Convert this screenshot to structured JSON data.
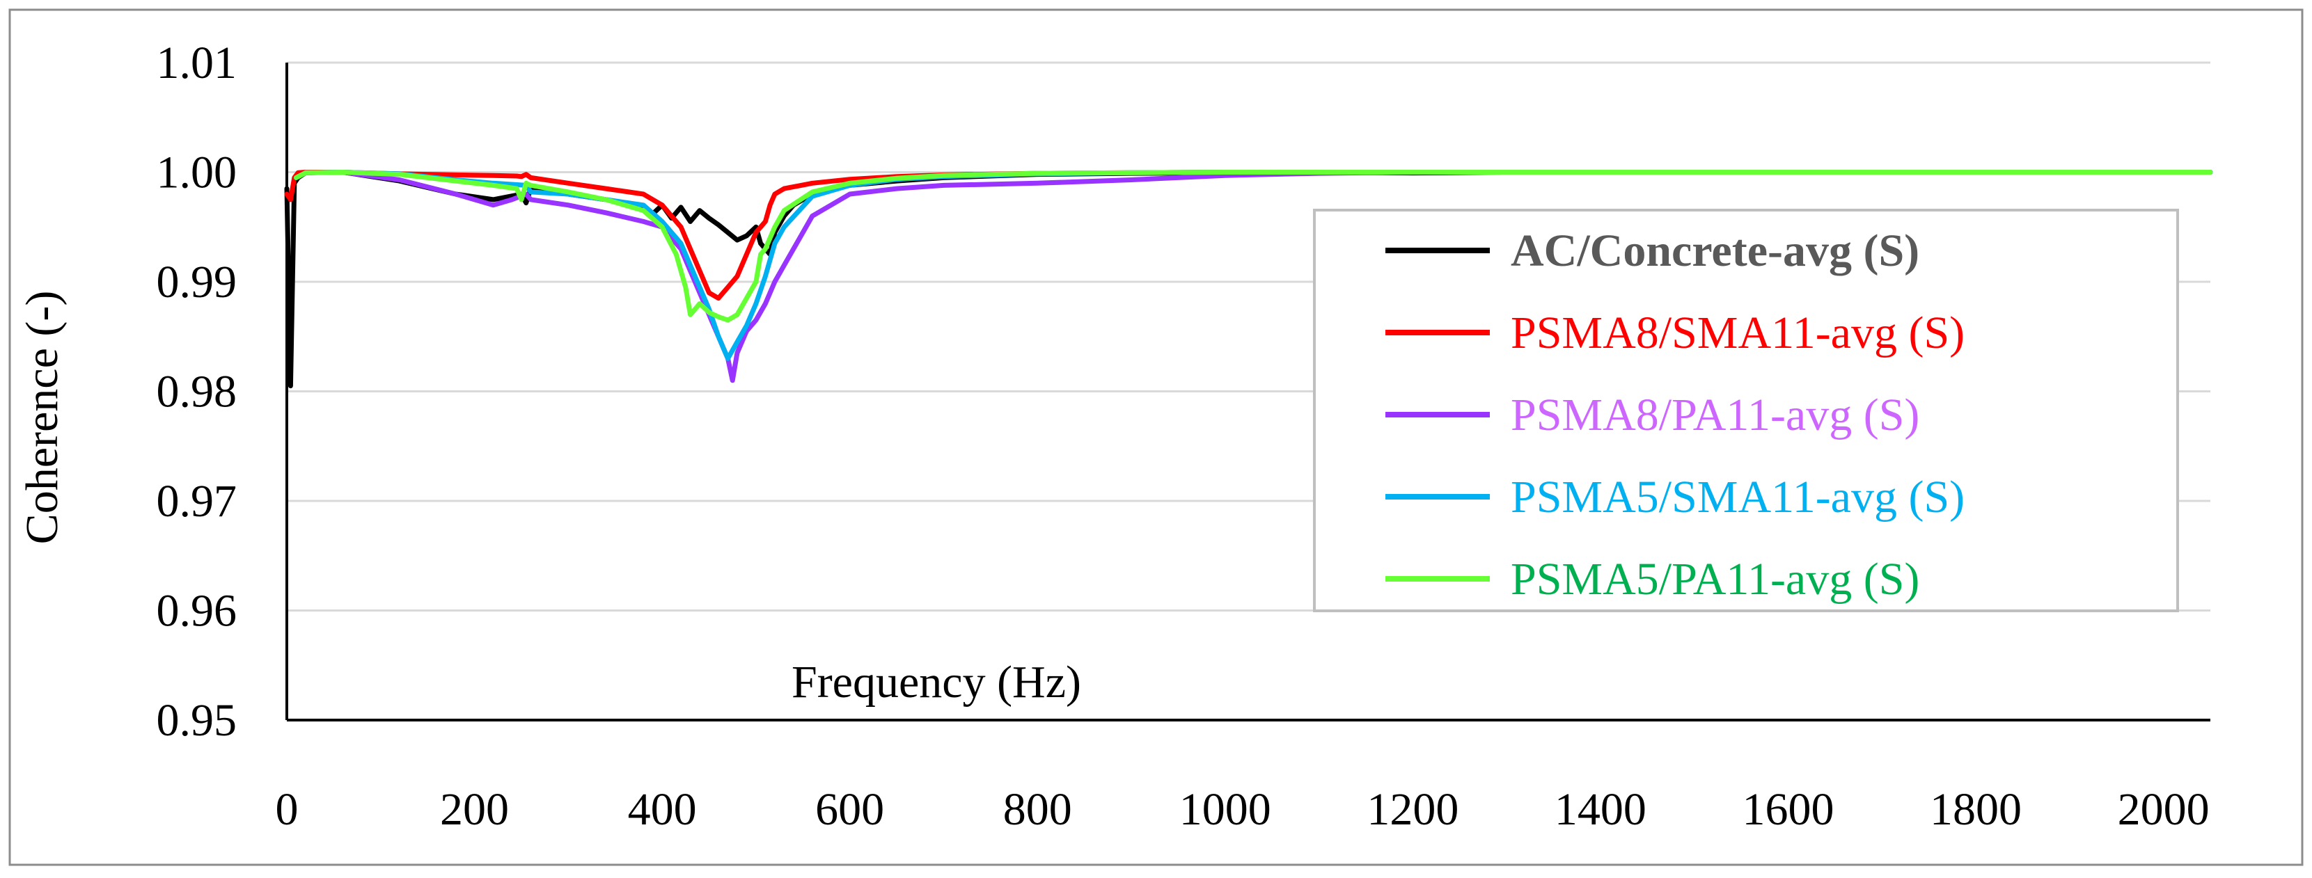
{
  "chart_data": {
    "type": "line",
    "title": "",
    "xlabel": "Frequency (Hz)",
    "ylabel": "Coherence (-)",
    "xlim": [
      0,
      2050
    ],
    "ylim": [
      0.95,
      1.01
    ],
    "x_ticks": [
      0,
      200,
      400,
      600,
      800,
      1000,
      1200,
      1400,
      1600,
      1800,
      2000
    ],
    "y_ticks": [
      0.95,
      0.96,
      0.97,
      0.98,
      0.99,
      1.0,
      1.01
    ],
    "y_tick_labels": [
      "0.95",
      "0.96",
      "0.97",
      "0.98",
      "0.99",
      "1.00",
      "1.01"
    ],
    "grid": "horizontal",
    "legend_position": "right",
    "series": [
      {
        "name": "AC/Concrete-avg (S)",
        "line_color": "#000000",
        "text_color": "#595959",
        "bold": true,
        "x": [
          0,
          4,
          8,
          12,
          20,
          60,
          120,
          180,
          220,
          250,
          255,
          260,
          300,
          340,
          360,
          390,
          400,
          410,
          420,
          430,
          440,
          450,
          460,
          470,
          480,
          490,
          500,
          505,
          510,
          515,
          520,
          530,
          540,
          560,
          600,
          650,
          700,
          800,
          900,
          1000,
          1100,
          1200,
          1300,
          1500,
          1800,
          2050
        ],
        "values": [
          0.9985,
          0.9805,
          0.999,
          0.9995,
          0.99995,
          1.0,
          0.9992,
          0.998,
          0.9975,
          0.998,
          0.9972,
          0.9985,
          0.998,
          0.9975,
          0.9972,
          0.9962,
          0.997,
          0.9958,
          0.9968,
          0.9955,
          0.9965,
          0.9958,
          0.9952,
          0.9945,
          0.9938,
          0.9942,
          0.995,
          0.9935,
          0.993,
          0.9925,
          0.9945,
          0.996,
          0.997,
          0.998,
          0.9988,
          0.9992,
          0.9995,
          0.9998,
          0.9999,
          0.99995,
          1.0,
          0.99993,
          1.0,
          1.0,
          1.0,
          1.0
        ]
      },
      {
        "name": "PSMA8/SMA11-avg (S)",
        "line_color": "#ff0000",
        "text_color": "#ff0000",
        "bold": false,
        "x": [
          0,
          4,
          8,
          12,
          20,
          60,
          120,
          180,
          220,
          245,
          250,
          255,
          260,
          300,
          340,
          380,
          400,
          420,
          440,
          450,
          460,
          470,
          480,
          490,
          500,
          505,
          510,
          515,
          520,
          530,
          560,
          600,
          650,
          700,
          800,
          900,
          1000,
          1200,
          1500,
          2050
        ],
        "values": [
          0.998,
          0.9975,
          0.9995,
          0.99995,
          1.0,
          1.0,
          0.99985,
          0.99975,
          0.9997,
          0.99965,
          0.9996,
          0.9998,
          0.9995,
          0.999,
          0.9985,
          0.998,
          0.997,
          0.995,
          0.991,
          0.989,
          0.9885,
          0.9895,
          0.9905,
          0.9925,
          0.9945,
          0.995,
          0.9955,
          0.997,
          0.998,
          0.9985,
          0.999,
          0.99935,
          0.9996,
          0.99975,
          0.9999,
          0.99995,
          1.0,
          1.0,
          1.0,
          1.0
        ]
      },
      {
        "name": "PSMA8/PA11-avg (S)",
        "line_color": "#9933ff",
        "text_color": "#cc66ff",
        "bold": false,
        "x": [
          10,
          20,
          60,
          120,
          180,
          200,
          220,
          240,
          255,
          260,
          300,
          340,
          380,
          400,
          420,
          440,
          450,
          460,
          470,
          475,
          480,
          490,
          500,
          510,
          520,
          530,
          540,
          560,
          600,
          650,
          700,
          800,
          900,
          1000,
          1100,
          1200,
          1500,
          2050
        ],
        "values": [
          0.9995,
          0.99995,
          1.0,
          0.9993,
          0.998,
          0.9975,
          0.997,
          0.9975,
          0.998,
          0.9975,
          0.997,
          0.9963,
          0.9955,
          0.995,
          0.993,
          0.989,
          0.987,
          0.985,
          0.983,
          0.981,
          0.9835,
          0.9855,
          0.9865,
          0.988,
          0.99,
          0.9915,
          0.993,
          0.996,
          0.998,
          0.9985,
          0.9988,
          0.999,
          0.9993,
          0.9997,
          0.9999,
          1.0,
          1.0,
          1.0
        ]
      },
      {
        "name": "PSMA5/SMA11-avg (S)",
        "line_color": "#00b0f0",
        "text_color": "#00b0f0",
        "bold": false,
        "x": [
          10,
          20,
          60,
          120,
          180,
          220,
          255,
          260,
          300,
          340,
          380,
          400,
          420,
          440,
          450,
          460,
          470,
          480,
          490,
          500,
          510,
          520,
          530,
          560,
          600,
          650,
          700,
          800,
          900,
          1000,
          1200,
          1500,
          2050
        ],
        "values": [
          0.9995,
          0.99995,
          1.0,
          0.99985,
          0.9993,
          0.999,
          0.9988,
          0.9982,
          0.998,
          0.9975,
          0.997,
          0.9955,
          0.9935,
          0.9895,
          0.9875,
          0.985,
          0.983,
          0.9845,
          0.986,
          0.988,
          0.9905,
          0.9935,
          0.995,
          0.9978,
          0.9988,
          0.99935,
          0.9996,
          0.99985,
          0.99995,
          1.0,
          1.0,
          1.0,
          1.0
        ]
      },
      {
        "name": "PSMA5/PA11-avg (S)",
        "line_color": "#66ff33",
        "text_color": "#00b050",
        "bold": false,
        "x": [
          10,
          20,
          60,
          120,
          180,
          220,
          245,
          250,
          255,
          260,
          300,
          340,
          380,
          400,
          415,
          425,
          430,
          440,
          450,
          460,
          470,
          480,
          490,
          500,
          505,
          510,
          520,
          530,
          560,
          600,
          650,
          700,
          800,
          900,
          1000,
          1200,
          1500,
          2050
        ],
        "values": [
          0.9995,
          0.99995,
          1.0,
          0.9998,
          0.9992,
          0.9988,
          0.9985,
          0.9975,
          0.999,
          0.9988,
          0.9982,
          0.9975,
          0.9965,
          0.995,
          0.9925,
          0.9895,
          0.987,
          0.988,
          0.9872,
          0.9868,
          0.9865,
          0.987,
          0.9885,
          0.99,
          0.9925,
          0.993,
          0.995,
          0.9965,
          0.9982,
          0.999,
          0.99945,
          0.9997,
          0.9999,
          0.99995,
          1.0,
          1.0,
          1.0,
          1.0
        ]
      }
    ]
  }
}
